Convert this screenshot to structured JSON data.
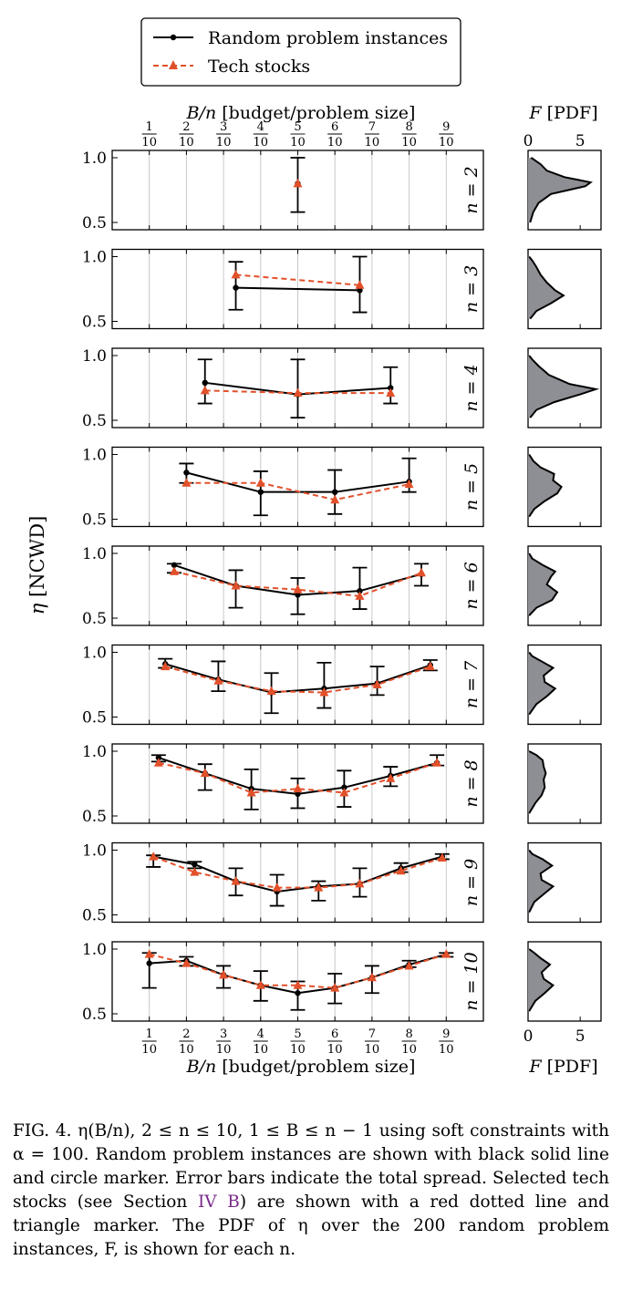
{
  "legend": {
    "random_label": "Random problem instances",
    "tech_label": "Tech stocks"
  },
  "axes_text": {
    "x_label_prefix": "B/n",
    "x_label_suffix": "[budget/problem size]",
    "y_label_prefix": "η",
    "y_label_suffix": "[NCWD]",
    "pdf_label_prefix": "F",
    "pdf_label_suffix": "[PDF]"
  },
  "colors": {
    "random": "#000000",
    "tech": "#e2502a",
    "pdf_fill": "#8e8f94",
    "grid": "#c8c8c8",
    "link": "#7a2a8a"
  },
  "caption": {
    "part1": "FIG. 4. η(B/n), 2 ≤ n ≤ 10, 1 ≤ B ≤ n − 1 using soft constraints with α = 100. Random problem instances are shown with black solid line and circle marker. Error bars indicate the total spread. Selected tech stocks (see Section ",
    "link": "IV B",
    "part2": ") are shown with a red dotted line and triangle marker. The PDF of η over the 200 random problem instances, F, is shown for each n."
  },
  "chart_data": {
    "type": "line",
    "xlabel": "B/n [budget/problem size]",
    "ylabel": "η [NCWD]",
    "x_ticks": [
      "1/10",
      "2/10",
      "3/10",
      "4/10",
      "5/10",
      "6/10",
      "7/10",
      "8/10",
      "9/10"
    ],
    "x_tick_values": [
      0.1,
      0.2,
      0.3,
      0.4,
      0.5,
      0.6,
      0.7,
      0.8,
      0.9
    ],
    "xlim": [
      0.0,
      1.0
    ],
    "ylim": [
      0.5,
      1.0
    ],
    "y_ticks": [
      0.5,
      1.0
    ],
    "grid": "vertical",
    "legend_position": "top",
    "pdf_xlabel": "F [PDF]",
    "pdf_ticks": [
      0,
      5
    ],
    "pdf_xlim": [
      0,
      7
    ],
    "panels": [
      {
        "n": 2,
        "label": "n = 2",
        "random": {
          "x": [
            0.5
          ],
          "y": [
            0.8
          ],
          "err_low": [
            0.58
          ],
          "err_high": [
            1.0
          ]
        },
        "tech": {
          "x": [
            0.5
          ],
          "y": [
            0.8
          ]
        },
        "pdf": [
          [
            0.5,
            0.2
          ],
          [
            0.58,
            0.5
          ],
          [
            0.65,
            1.0
          ],
          [
            0.72,
            2.2
          ],
          [
            0.78,
            5.5
          ],
          [
            0.81,
            6.0
          ],
          [
            0.85,
            3.5
          ],
          [
            0.9,
            1.8
          ],
          [
            0.95,
            1.2
          ],
          [
            1.0,
            0.3
          ]
        ]
      },
      {
        "n": 3,
        "label": "n = 3",
        "random": {
          "x": [
            0.333,
            0.667
          ],
          "y": [
            0.76,
            0.74
          ],
          "err_low": [
            0.59,
            0.57
          ],
          "err_high": [
            0.96,
            1.0
          ]
        },
        "tech": {
          "x": [
            0.333,
            0.667
          ],
          "y": [
            0.86,
            0.78
          ]
        },
        "pdf": [
          [
            0.52,
            0.2
          ],
          [
            0.58,
            0.8
          ],
          [
            0.64,
            2.2
          ],
          [
            0.7,
            3.4
          ],
          [
            0.74,
            2.6
          ],
          [
            0.8,
            1.8
          ],
          [
            0.86,
            1.2
          ],
          [
            0.92,
            0.8
          ],
          [
            0.97,
            0.4
          ],
          [
            1.0,
            0.1
          ]
        ]
      },
      {
        "n": 4,
        "label": "n = 4",
        "random": {
          "x": [
            0.25,
            0.5,
            0.75
          ],
          "y": [
            0.79,
            0.7,
            0.75
          ],
          "err_low": [
            0.63,
            0.52,
            0.63
          ],
          "err_high": [
            0.97,
            0.97,
            0.91
          ]
        },
        "tech": {
          "x": [
            0.25,
            0.5,
            0.75
          ],
          "y": [
            0.73,
            0.71,
            0.71
          ]
        },
        "pdf": [
          [
            0.52,
            0.2
          ],
          [
            0.58,
            0.8
          ],
          [
            0.64,
            2.5
          ],
          [
            0.7,
            5.0
          ],
          [
            0.74,
            6.5
          ],
          [
            0.78,
            4.0
          ],
          [
            0.85,
            2.0
          ],
          [
            0.92,
            1.0
          ],
          [
            0.97,
            0.4
          ],
          [
            1.0,
            0.1
          ]
        ]
      },
      {
        "n": 5,
        "label": "n = 5",
        "random": {
          "x": [
            0.2,
            0.4,
            0.6,
            0.8
          ],
          "y": [
            0.86,
            0.71,
            0.71,
            0.79
          ],
          "err_low": [
            0.78,
            0.53,
            0.54,
            0.71
          ],
          "err_high": [
            0.93,
            0.87,
            0.88,
            0.97
          ]
        },
        "tech": {
          "x": [
            0.2,
            0.4,
            0.6,
            0.8
          ],
          "y": [
            0.78,
            0.78,
            0.65,
            0.77
          ]
        },
        "pdf": [
          [
            0.52,
            0.1
          ],
          [
            0.58,
            0.6
          ],
          [
            0.64,
            1.6
          ],
          [
            0.7,
            2.8
          ],
          [
            0.75,
            3.2
          ],
          [
            0.8,
            2.4
          ],
          [
            0.85,
            2.5
          ],
          [
            0.9,
            1.2
          ],
          [
            0.95,
            0.5
          ],
          [
            1.0,
            0.1
          ]
        ]
      },
      {
        "n": 6,
        "label": "n = 6",
        "random": {
          "x": [
            0.167,
            0.333,
            0.5,
            0.667,
            0.833
          ],
          "y": [
            0.91,
            0.75,
            0.68,
            0.71,
            0.84
          ],
          "err_low": [
            0.85,
            0.58,
            0.53,
            0.57,
            0.75
          ],
          "err_high": [
            0.92,
            0.87,
            0.81,
            0.89,
            0.92
          ]
        },
        "tech": {
          "x": [
            0.167,
            0.333,
            0.5,
            0.667,
            0.833
          ],
          "y": [
            0.86,
            0.75,
            0.72,
            0.67,
            0.85
          ]
        },
        "pdf": [
          [
            0.52,
            0.1
          ],
          [
            0.58,
            0.8
          ],
          [
            0.64,
            2.3
          ],
          [
            0.7,
            2.8
          ],
          [
            0.76,
            1.8
          ],
          [
            0.82,
            2.2
          ],
          [
            0.86,
            2.6
          ],
          [
            0.91,
            1.4
          ],
          [
            0.96,
            0.4
          ],
          [
            1.0,
            0.1
          ]
        ]
      },
      {
        "n": 7,
        "label": "n = 7",
        "random": {
          "x": [
            0.143,
            0.286,
            0.429,
            0.571,
            0.714,
            0.857
          ],
          "y": [
            0.91,
            0.79,
            0.69,
            0.72,
            0.76,
            0.9
          ],
          "err_low": [
            0.88,
            0.7,
            0.53,
            0.57,
            0.67,
            0.86
          ],
          "err_high": [
            0.95,
            0.93,
            0.84,
            0.92,
            0.89,
            0.94
          ]
        },
        "tech": {
          "x": [
            0.143,
            0.286,
            0.429,
            0.571,
            0.714,
            0.857
          ],
          "y": [
            0.89,
            0.78,
            0.7,
            0.69,
            0.75,
            0.89
          ]
        },
        "pdf": [
          [
            0.52,
            0.1
          ],
          [
            0.6,
            0.8
          ],
          [
            0.66,
            1.8
          ],
          [
            0.72,
            2.6
          ],
          [
            0.77,
            1.6
          ],
          [
            0.82,
            1.5
          ],
          [
            0.88,
            2.4
          ],
          [
            0.93,
            1.3
          ],
          [
            0.97,
            0.4
          ],
          [
            1.0,
            0.1
          ]
        ]
      },
      {
        "n": 8,
        "label": "n = 8",
        "random": {
          "x": [
            0.125,
            0.25,
            0.375,
            0.5,
            0.625,
            0.75,
            0.875
          ],
          "y": [
            0.95,
            0.83,
            0.71,
            0.67,
            0.72,
            0.81,
            0.91
          ],
          "err_low": [
            0.92,
            0.7,
            0.55,
            0.56,
            0.57,
            0.73,
            0.89
          ],
          "err_high": [
            0.97,
            0.9,
            0.86,
            0.79,
            0.85,
            0.88,
            0.97
          ]
        },
        "tech": {
          "x": [
            0.125,
            0.25,
            0.375,
            0.5,
            0.625,
            0.75,
            0.875
          ],
          "y": [
            0.91,
            0.83,
            0.68,
            0.71,
            0.68,
            0.79,
            0.91
          ]
        },
        "pdf": [
          [
            0.52,
            0.1
          ],
          [
            0.6,
            0.7
          ],
          [
            0.66,
            1.3
          ],
          [
            0.72,
            1.6
          ],
          [
            0.78,
            1.5
          ],
          [
            0.83,
            1.7
          ],
          [
            0.88,
            1.5
          ],
          [
            0.93,
            1.4
          ],
          [
            0.97,
            0.8
          ],
          [
            1.0,
            0.1
          ]
        ]
      },
      {
        "n": 9,
        "label": "n = 9",
        "random": {
          "x": [
            0.111,
            0.222,
            0.333,
            0.444,
            0.556,
            0.667,
            0.778,
            0.889
          ],
          "y": [
            0.95,
            0.89,
            0.76,
            0.68,
            0.72,
            0.74,
            0.86,
            0.95
          ],
          "err_low": [
            0.87,
            0.86,
            0.65,
            0.57,
            0.61,
            0.64,
            0.83,
            0.93
          ],
          "err_high": [
            0.96,
            0.91,
            0.86,
            0.81,
            0.76,
            0.86,
            0.9,
            0.97
          ]
        },
        "tech": {
          "x": [
            0.111,
            0.222,
            0.333,
            0.444,
            0.556,
            0.667,
            0.778,
            0.889
          ],
          "y": [
            0.95,
            0.83,
            0.76,
            0.71,
            0.71,
            0.74,
            0.84,
            0.94
          ]
        },
        "pdf": [
          [
            0.52,
            0.1
          ],
          [
            0.6,
            0.6
          ],
          [
            0.66,
            1.5
          ],
          [
            0.72,
            2.4
          ],
          [
            0.77,
            1.3
          ],
          [
            0.82,
            1.2
          ],
          [
            0.88,
            2.3
          ],
          [
            0.93,
            1.4
          ],
          [
            0.97,
            0.4
          ],
          [
            1.0,
            0.1
          ]
        ]
      },
      {
        "n": 10,
        "label": "n = 10",
        "random": {
          "x": [
            0.1,
            0.2,
            0.3,
            0.4,
            0.5,
            0.6,
            0.7,
            0.8,
            0.9
          ],
          "y": [
            0.89,
            0.91,
            0.8,
            0.72,
            0.66,
            0.7,
            0.78,
            0.88,
            0.96
          ],
          "err_low": [
            0.7,
            0.87,
            0.7,
            0.6,
            0.53,
            0.58,
            0.66,
            0.86,
            0.94
          ],
          "err_high": [
            0.97,
            0.94,
            0.87,
            0.83,
            0.75,
            0.81,
            0.87,
            0.91,
            0.97
          ]
        },
        "tech": {
          "x": [
            0.1,
            0.2,
            0.3,
            0.4,
            0.5,
            0.6,
            0.7,
            0.8,
            0.9
          ],
          "y": [
            0.96,
            0.89,
            0.8,
            0.72,
            0.72,
            0.7,
            0.78,
            0.87,
            0.96
          ]
        },
        "pdf": [
          [
            0.52,
            0.1
          ],
          [
            0.6,
            0.7
          ],
          [
            0.66,
            1.6
          ],
          [
            0.72,
            2.4
          ],
          [
            0.77,
            1.5
          ],
          [
            0.82,
            1.3
          ],
          [
            0.88,
            2.1
          ],
          [
            0.93,
            1.2
          ],
          [
            0.97,
            0.6
          ],
          [
            1.0,
            0.1
          ]
        ]
      }
    ]
  }
}
